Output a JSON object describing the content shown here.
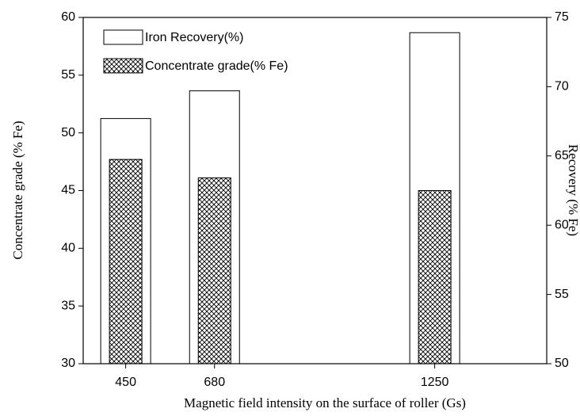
{
  "chart_data": {
    "type": "bar",
    "xlabel": "Magnetic field intensity on the surface of roller (Gs)",
    "ylabel": "Concentrate grade (% Fe)",
    "y2label": "Recovery (% Fe)",
    "x": [
      450,
      680,
      1250
    ],
    "xlim": [
      340,
      1540
    ],
    "xticks": [
      450,
      680,
      1250
    ],
    "ylim": [
      30,
      60
    ],
    "yticks": [
      30,
      35,
      40,
      45,
      50,
      55,
      60
    ],
    "y2lim": [
      50,
      75
    ],
    "y2ticks": [
      50,
      55,
      60,
      65,
      70,
      75
    ],
    "legend": "upper left",
    "series": [
      {
        "name": "Iron Recovery(%)",
        "color": "#ffffff",
        "axis": "y2",
        "values": [
          67.7,
          69.7,
          73.9
        ]
      },
      {
        "name": "Concentrate grade(% Fe)",
        "color": "#000000",
        "hatch": true,
        "values": [
          47.7,
          46.1,
          45.0
        ]
      }
    ]
  }
}
